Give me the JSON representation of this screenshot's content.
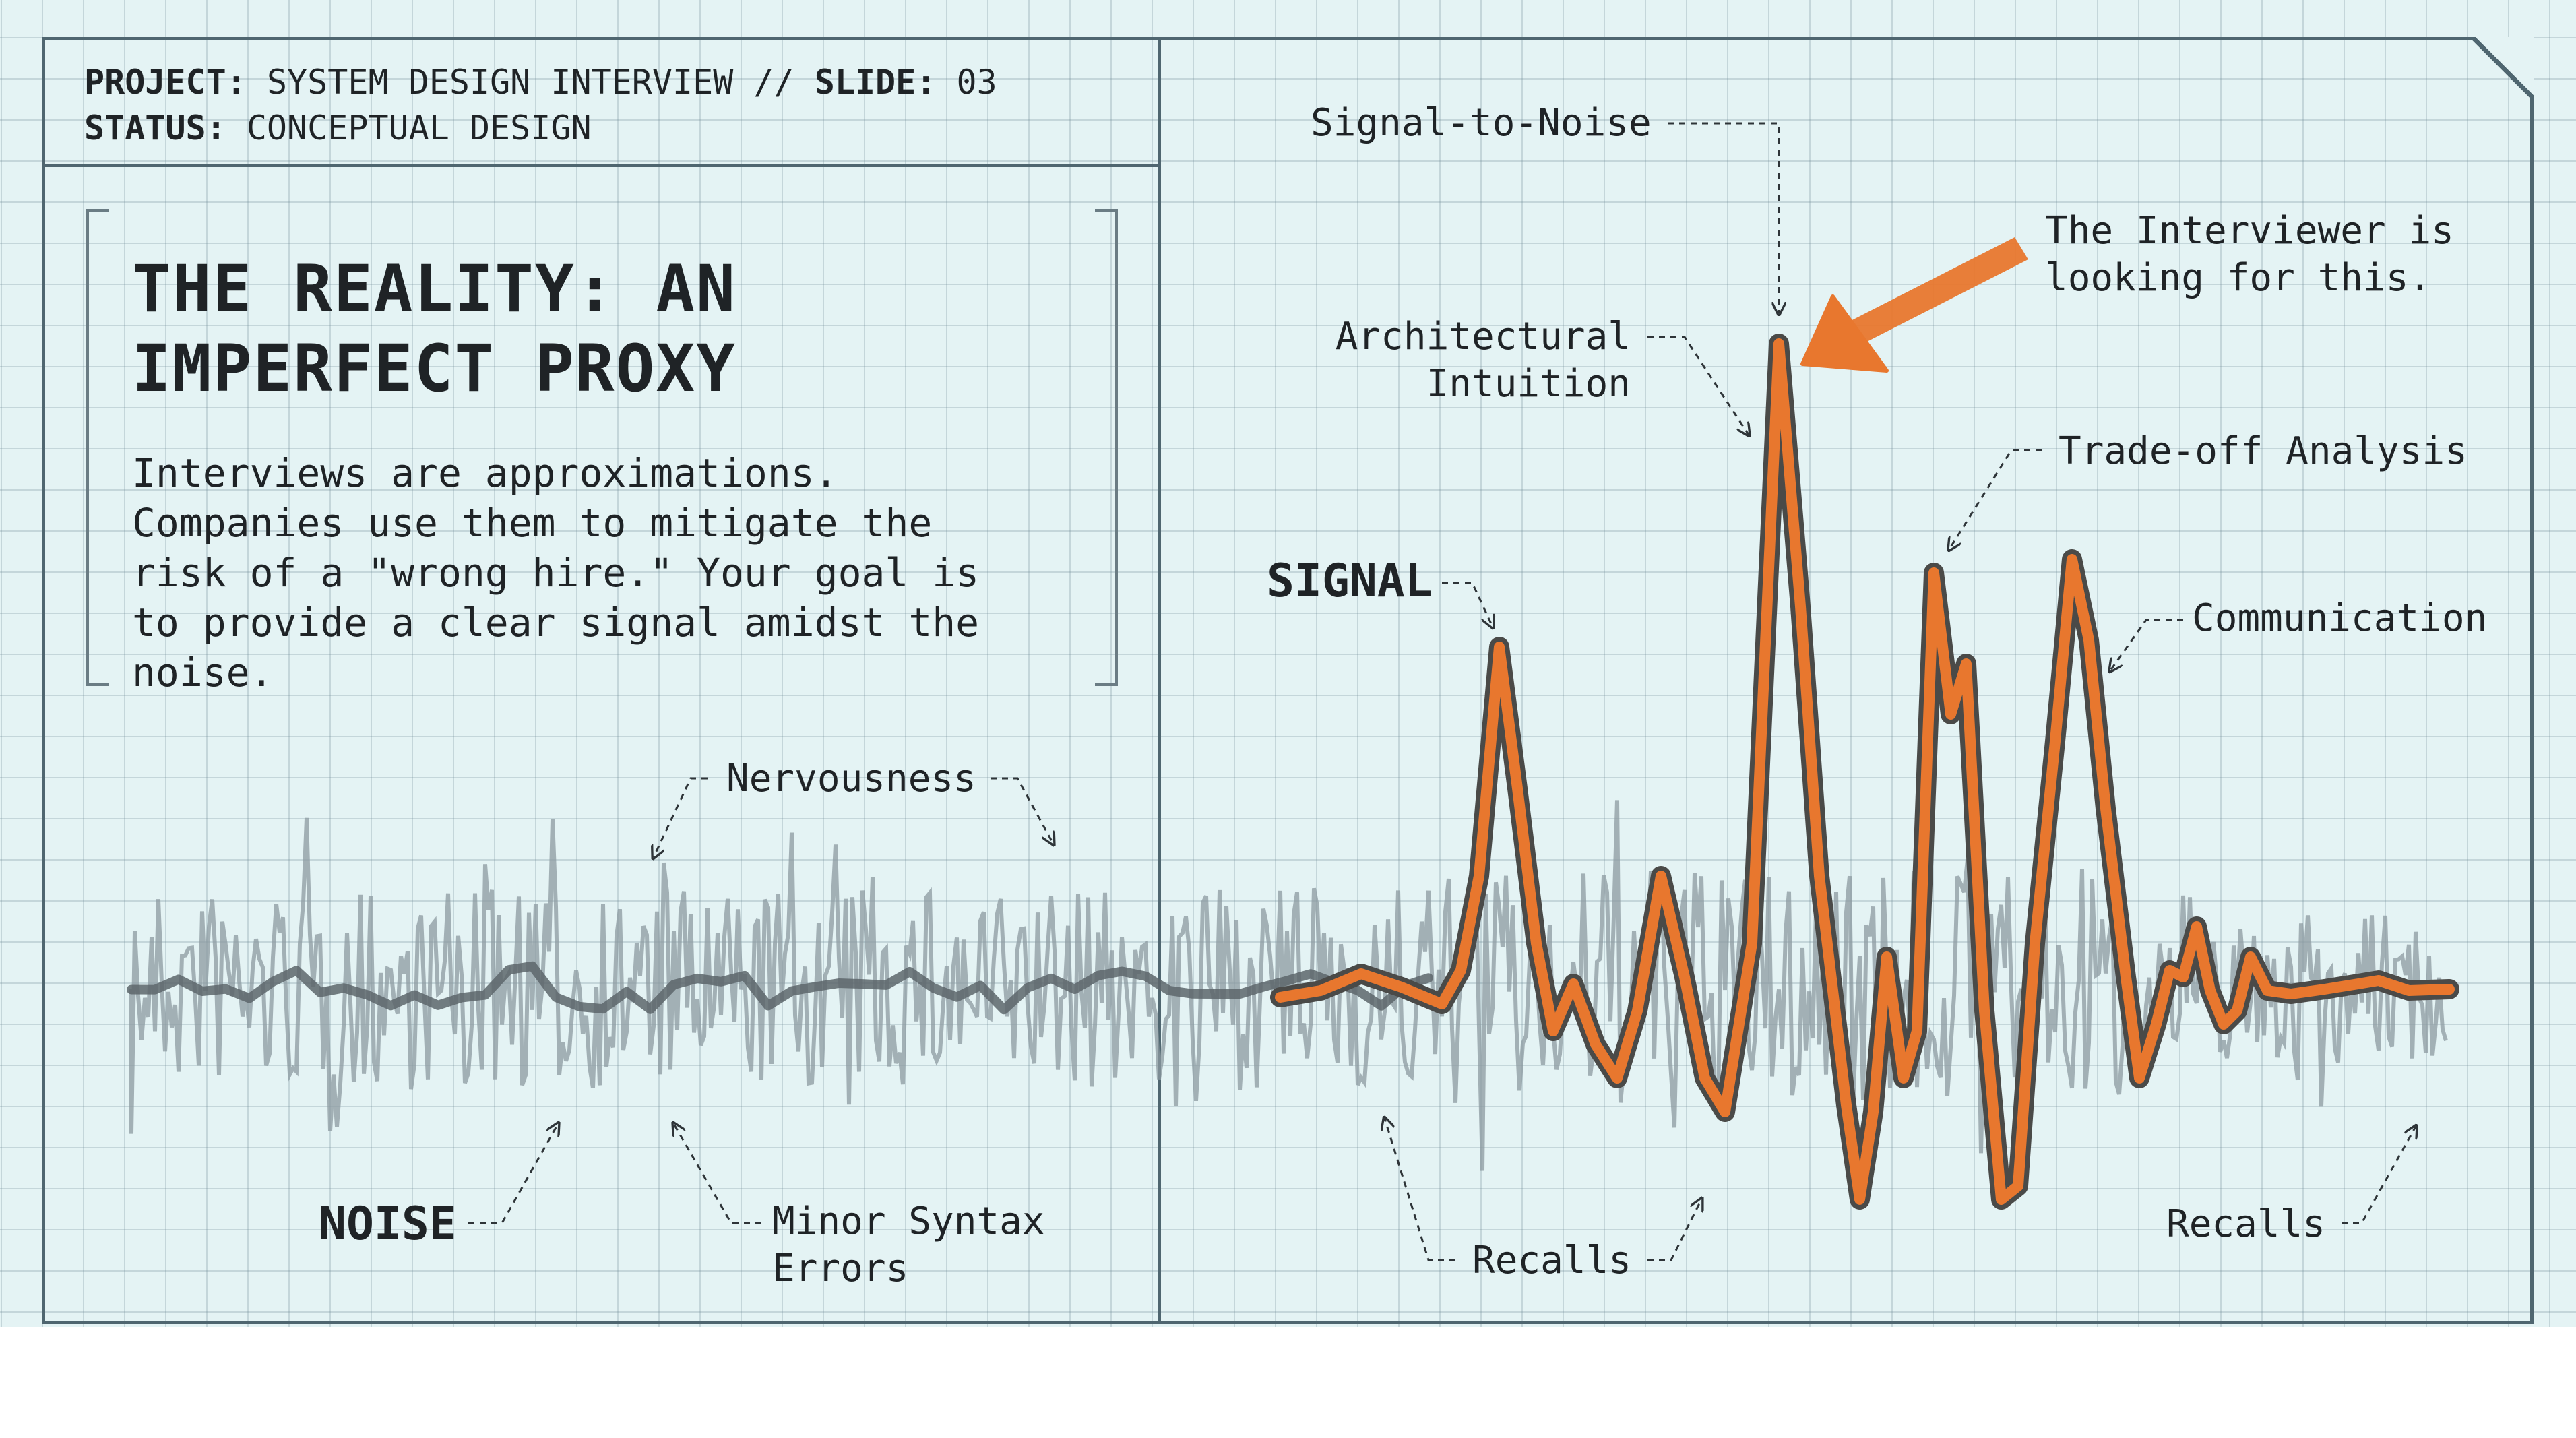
{
  "header": {
    "project_key": "PROJECT:",
    "project_value": "SYSTEM DESIGN INTERVIEW //",
    "slide_key": "SLIDE:",
    "slide_value": "03",
    "status_key": "STATUS:",
    "status_value": "CONCEPTUAL DESIGN"
  },
  "main": {
    "title": "THE REALITY: AN IMPERFECT PROXY",
    "body": "Interviews are approximations.\nCompanies use them to mitigate the\nrisk of a \"wrong hire.\" Your goal is\nto provide a clear signal amidst the\nnoise."
  },
  "labels": {
    "signal_to_noise": "Signal-to-Noise",
    "interviewer": "The Interviewer is\nlooking for this.",
    "architectural_intuition": "Architectural\nIntuition",
    "trade_off": "Trade-off Analysis",
    "signal": "SIGNAL",
    "communication": "Communication",
    "nervousness": "Nervousness",
    "noise": "NOISE",
    "minor_syntax": "Minor Syntax\nErrors",
    "recalls_center": "Recalls",
    "recalls_right": "Recalls"
  },
  "colors": {
    "background": "#e4f3f4",
    "grid_line": "#6e8c96",
    "frame": "#4f6670",
    "text": "#1f2326",
    "noise_gray": "#8c9aa0",
    "noise_line": "#5d666b",
    "signal_orange": "#e8772e",
    "signal_outline": "#4a4a48"
  }
}
